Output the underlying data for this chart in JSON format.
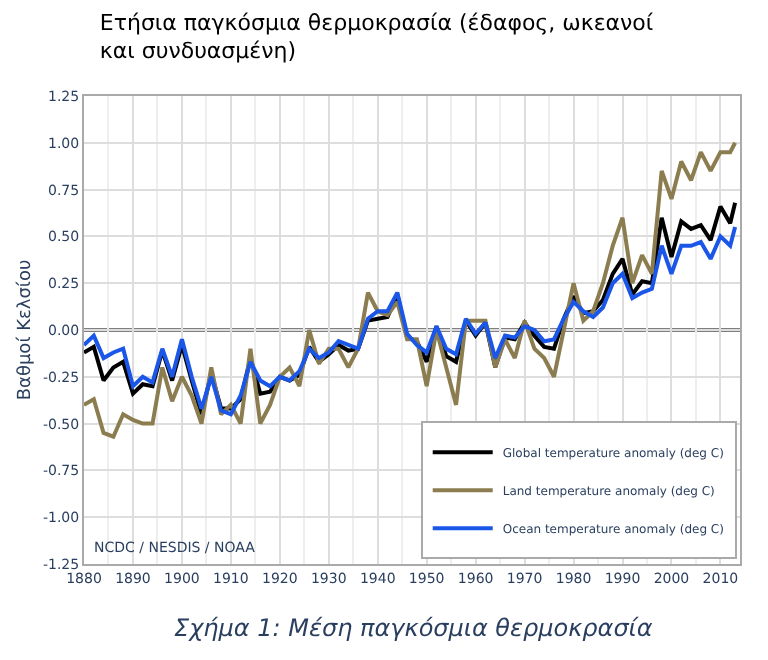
{
  "chart_data": {
    "type": "line",
    "title": "Ετήσια παγκόσμια θερμοκρασία (έδαφος, ωκεανοί και συνδυασμένη)",
    "ylabel": "Βαθμοί Κελσίου",
    "x": [
      1880,
      1882,
      1884,
      1886,
      1888,
      1890,
      1892,
      1894,
      1896,
      1898,
      1900,
      1902,
      1904,
      1906,
      1908,
      1910,
      1912,
      1914,
      1916,
      1918,
      1920,
      1922,
      1924,
      1926,
      1928,
      1930,
      1932,
      1934,
      1936,
      1938,
      1940,
      1942,
      1944,
      1946,
      1948,
      1950,
      1952,
      1954,
      1956,
      1958,
      1960,
      1962,
      1964,
      1966,
      1968,
      1970,
      1972,
      1974,
      1976,
      1978,
      1980,
      1982,
      1984,
      1986,
      1988,
      1990,
      1992,
      1994,
      1996,
      1998,
      2000,
      2002,
      2004,
      2006,
      2008,
      2010,
      2012,
      2013
    ],
    "series": [
      {
        "name": "Global temperature anomaly (deg C)",
        "color": "#000000",
        "values": [
          -0.12,
          -0.09,
          -0.27,
          -0.2,
          -0.17,
          -0.34,
          -0.29,
          -0.3,
          -0.11,
          -0.27,
          -0.08,
          -0.27,
          -0.45,
          -0.23,
          -0.42,
          -0.42,
          -0.37,
          -0.15,
          -0.34,
          -0.33,
          -0.25,
          -0.27,
          -0.24,
          -0.09,
          -0.17,
          -0.13,
          -0.08,
          -0.11,
          -0.1,
          0.05,
          0.06,
          0.07,
          0.19,
          -0.04,
          -0.06,
          -0.17,
          0.02,
          -0.14,
          -0.17,
          0.05,
          -0.03,
          0.04,
          -0.2,
          -0.04,
          -0.05,
          0.04,
          -0.03,
          -0.09,
          -0.1,
          0.06,
          0.18,
          0.09,
          0.1,
          0.16,
          0.3,
          0.38,
          0.19,
          0.26,
          0.25,
          0.6,
          0.39,
          0.58,
          0.54,
          0.56,
          0.48,
          0.66,
          0.57,
          0.68
        ]
      },
      {
        "name": "Land temperature anomaly (deg C)",
        "color": "#8b7d4f",
        "values": [
          -0.4,
          -0.37,
          -0.55,
          -0.57,
          -0.45,
          -0.48,
          -0.5,
          -0.5,
          -0.2,
          -0.38,
          -0.25,
          -0.35,
          -0.5,
          -0.2,
          -0.45,
          -0.4,
          -0.5,
          -0.1,
          -0.5,
          -0.4,
          -0.25,
          -0.2,
          -0.3,
          0.0,
          -0.18,
          -0.1,
          -0.1,
          -0.2,
          -0.1,
          0.2,
          0.1,
          0.08,
          0.15,
          -0.05,
          -0.05,
          -0.3,
          0.0,
          -0.2,
          -0.4,
          0.05,
          0.05,
          0.05,
          -0.2,
          -0.05,
          -0.15,
          0.05,
          -0.1,
          -0.15,
          -0.25,
          0.0,
          0.25,
          0.05,
          0.1,
          0.25,
          0.45,
          0.6,
          0.25,
          0.4,
          0.3,
          0.85,
          0.7,
          0.9,
          0.8,
          0.95,
          0.85,
          0.95,
          0.95,
          1.0
        ]
      },
      {
        "name": "Ocean temperature anomaly (deg C)",
        "color": "#1a56e8",
        "values": [
          -0.08,
          -0.03,
          -0.15,
          -0.12,
          -0.1,
          -0.3,
          -0.25,
          -0.28,
          -0.1,
          -0.25,
          -0.05,
          -0.25,
          -0.42,
          -0.25,
          -0.43,
          -0.45,
          -0.35,
          -0.17,
          -0.27,
          -0.3,
          -0.25,
          -0.27,
          -0.22,
          -0.1,
          -0.15,
          -0.12,
          -0.06,
          -0.08,
          -0.1,
          0.06,
          0.1,
          0.1,
          0.2,
          -0.02,
          -0.08,
          -0.12,
          0.02,
          -0.1,
          -0.13,
          0.06,
          -0.02,
          0.04,
          -0.15,
          -0.03,
          -0.04,
          0.02,
          0.0,
          -0.06,
          -0.05,
          0.06,
          0.15,
          0.1,
          0.07,
          0.12,
          0.25,
          0.3,
          0.17,
          0.2,
          0.22,
          0.45,
          0.3,
          0.45,
          0.45,
          0.47,
          0.38,
          0.5,
          0.45,
          0.55
        ]
      }
    ],
    "xlim": [
      1880,
      2014
    ],
    "xticks": [
      1880,
      1890,
      1900,
      1910,
      1920,
      1930,
      1940,
      1950,
      1960,
      1970,
      1980,
      1990,
      2000,
      2010
    ],
    "ylim": [
      -1.25,
      1.25
    ],
    "yticks": [
      {
        "value": -1.25,
        "label": "-1.25"
      },
      {
        "value": -1.0,
        "label": "-1.00"
      },
      {
        "value": -0.75,
        "label": "-0.75"
      },
      {
        "value": -0.5,
        "label": "-0.50"
      },
      {
        "value": -0.25,
        "label": "-0.25"
      },
      {
        "value": 0,
        "label": "0.00"
      },
      {
        "value": 0.25,
        "label": "0.25"
      },
      {
        "value": 0.5,
        "label": "0.50"
      },
      {
        "value": 0.75,
        "label": "0.75"
      },
      {
        "value": 1.0,
        "label": "1.00"
      },
      {
        "value": 1.25,
        "label": "1.25"
      }
    ],
    "ref_lines": [
      {
        "axis": "y",
        "value": 0,
        "color": "#000000"
      }
    ],
    "annotations": [
      "NCDC / NESDIS / NOAA",
      "Σχήμα 1: Μέση παγκόσμια θερμοκρασία"
    ],
    "grid": true,
    "legend": "bottom right",
    "marker": "none",
    "line_style": "solid"
  }
}
